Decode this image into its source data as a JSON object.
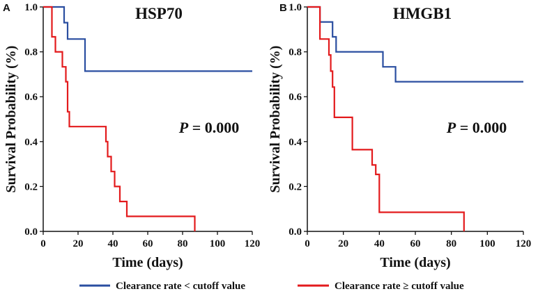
{
  "colors": {
    "low": "#2a4ea0",
    "high": "#e31a1c",
    "axis": "#111111"
  },
  "legend": {
    "low_label": "Clearance rate < cutoff value",
    "high_label": "Clearance rate ≥ cutoff value"
  },
  "chart_data": [
    {
      "type": "line",
      "panel": "A",
      "title": "HSP70",
      "xlabel": "Time (days)",
      "ylabel": "Survival Probability (%)",
      "xlim": [
        0,
        120
      ],
      "ylim": [
        0,
        1.0
      ],
      "xticks": [
        "0",
        "20",
        "40",
        "60",
        "80",
        "100",
        "120"
      ],
      "yticks": [
        "0.0",
        "0.2",
        "0.4",
        "0.6",
        "0.8",
        "1.0"
      ],
      "annotation": {
        "p_label": "P",
        "p_value": " = 0.000"
      },
      "series": [
        {
          "name": "Clearance rate < cutoff value",
          "x": [
            0,
            12,
            14,
            24,
            120
          ],
          "y": [
            1.0,
            0.93,
            0.857,
            0.714,
            0.714
          ]
        },
        {
          "name": "Clearance rate ≥ cutoff value",
          "x": [
            0,
            5,
            7,
            11,
            13,
            14,
            15,
            36,
            37,
            39,
            41,
            44,
            48,
            87
          ],
          "y": [
            1.0,
            0.867,
            0.8,
            0.733,
            0.667,
            0.533,
            0.467,
            0.4,
            0.333,
            0.267,
            0.2,
            0.133,
            0.067,
            0.0
          ]
        }
      ]
    },
    {
      "type": "line",
      "panel": "B",
      "title": "HMGB1",
      "xlabel": "Time (days)",
      "ylabel": "Survival Probability (%)",
      "xlim": [
        0,
        120
      ],
      "ylim": [
        0,
        1.0
      ],
      "xticks": [
        "0",
        "20",
        "40",
        "60",
        "80",
        "100",
        "120"
      ],
      "yticks": [
        "0.0",
        "0.2",
        "0.4",
        "0.6",
        "0.8",
        "1.0"
      ],
      "annotation": {
        "p_label": "P",
        "p_value": " = 0.000"
      },
      "series": [
        {
          "name": "Clearance rate < cutoff value",
          "x": [
            0,
            7,
            14,
            16,
            42,
            49,
            120
          ],
          "y": [
            1.0,
            0.933,
            0.867,
            0.8,
            0.733,
            0.667,
            0.667
          ]
        },
        {
          "name": "Clearance rate ≥ cutoff value",
          "x": [
            0,
            7,
            12,
            13,
            14,
            15,
            25,
            36,
            38,
            40,
            87
          ],
          "y": [
            1.0,
            0.857,
            0.786,
            0.714,
            0.643,
            0.508,
            0.364,
            0.296,
            0.254,
            0.085,
            0.0
          ]
        }
      ]
    }
  ]
}
